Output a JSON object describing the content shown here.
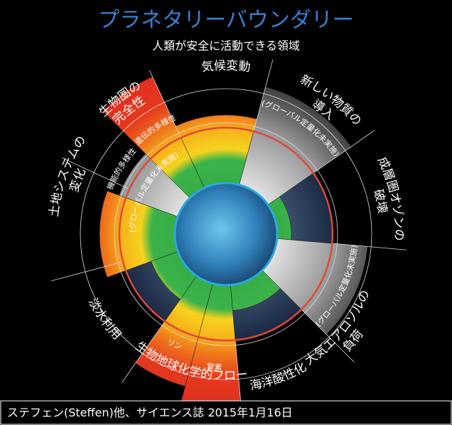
{
  "header": {
    "title": "プラネタリーバウンダリー",
    "subtitle": "人類が安全に活動できる領域"
  },
  "boundaries": [
    {
      "lines": [
        "生物圏の",
        "完全性"
      ]
    },
    {
      "lines": [
        "気候変動"
      ]
    },
    {
      "lines": [
        "新しい物質の",
        "導入"
      ]
    },
    {
      "lines": [
        "成層圏オゾンの",
        "破壊"
      ]
    },
    {
      "lines": [
        "大気エアロゾルの",
        "負荷"
      ]
    },
    {
      "lines": [
        "海洋酸性化"
      ]
    },
    {
      "lines": [
        "生物地球化学的フロー"
      ]
    },
    {
      "lines": [
        "淡水利用"
      ]
    },
    {
      "lines": [
        "土地システムの",
        "変化"
      ]
    }
  ],
  "sub_labels": [
    "機能的多様性",
    "遺伝的多様性",
    "(グローバル定量化未実施)",
    "(グローバル定量化未実施)",
    "(グローバル定量化未実施)",
    "リン",
    "窒素"
  ],
  "footer": "ステフェン(Steffen)他、サイエンス誌 2015年1月16日"
}
